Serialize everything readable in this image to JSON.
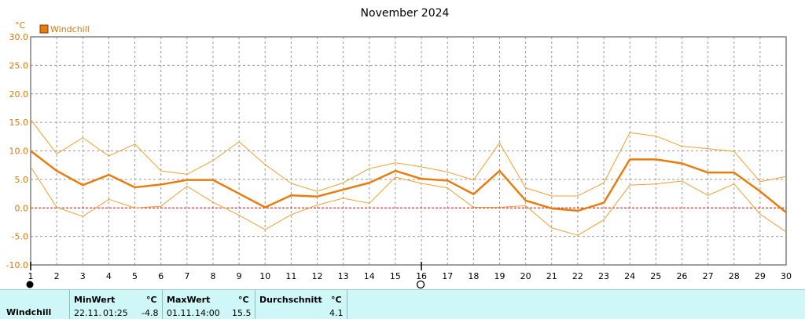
{
  "chart_data": {
    "type": "line",
    "title": "November 2024",
    "ylabel": "°C",
    "ylim": [
      -10,
      30
    ],
    "yticks": [
      "30.0",
      "25.0",
      "20.0",
      "15.0",
      "10.0",
      "5.0",
      "0.0",
      "-5.0",
      "-10.0"
    ],
    "x": [
      1,
      2,
      3,
      4,
      5,
      6,
      7,
      8,
      9,
      10,
      11,
      12,
      13,
      14,
      15,
      16,
      17,
      18,
      19,
      20,
      21,
      22,
      23,
      24,
      25,
      26,
      27,
      28,
      29,
      30
    ],
    "xlim": [
      1,
      30
    ],
    "grid": true,
    "legend": "top-left",
    "moon_markers": [
      {
        "day": 1,
        "phase": "new-moon"
      },
      {
        "day": 16,
        "phase": "full-moon"
      }
    ],
    "series": [
      {
        "name": "Windchill",
        "role": "mean",
        "color": "#e87d0d",
        "values": [
          10.0,
          6.5,
          4.0,
          5.8,
          3.6,
          4.1,
          4.9,
          4.9,
          2.5,
          0.1,
          2.2,
          2.0,
          3.2,
          4.4,
          6.5,
          5.1,
          4.8,
          2.4,
          6.5,
          1.3,
          -0.1,
          -0.5,
          0.9,
          8.5,
          8.5,
          7.8,
          6.2,
          6.2,
          2.9,
          -0.8
        ]
      },
      {
        "role": "max",
        "color": "#f0a030",
        "values": [
          15.5,
          9.5,
          12.3,
          9.1,
          11.2,
          6.5,
          5.9,
          8.3,
          11.6,
          7.6,
          4.3,
          2.9,
          4.4,
          6.9,
          7.9,
          7.2,
          6.3,
          4.9,
          11.4,
          3.5,
          2.1,
          2.1,
          4.4,
          13.2,
          12.6,
          10.8,
          10.4,
          9.9,
          4.6,
          5.5
        ]
      },
      {
        "role": "min",
        "color": "#f0a030",
        "values": [
          7.2,
          0.1,
          -1.5,
          1.5,
          0.0,
          0.3,
          3.8,
          1.0,
          -1.3,
          -3.8,
          -1.2,
          0.5,
          1.7,
          0.8,
          5.4,
          4.3,
          3.5,
          0.1,
          0.1,
          0.4,
          -3.5,
          -4.8,
          -2.1,
          4.0,
          4.2,
          4.7,
          2.2,
          4.2,
          -1.1,
          -4.2
        ]
      }
    ]
  },
  "stats": {
    "row_label": "Windchill",
    "min": {
      "label": "MinWert",
      "unit": "°C",
      "date": "22.11.",
      "time": "01:25",
      "value": "-4.8"
    },
    "max": {
      "label": "MaxWert",
      "unit": "°C",
      "date": "01.11.",
      "time": "14:00",
      "value": "15.5"
    },
    "avg": {
      "label": "Durchschnitt",
      "unit": "°C",
      "value": "4.1"
    }
  },
  "colors": {
    "axis_labels": "#d9780f",
    "zero_line": "#cc0000",
    "grid": "#9a9a9a",
    "stats_bg": "#cff7f7"
  }
}
